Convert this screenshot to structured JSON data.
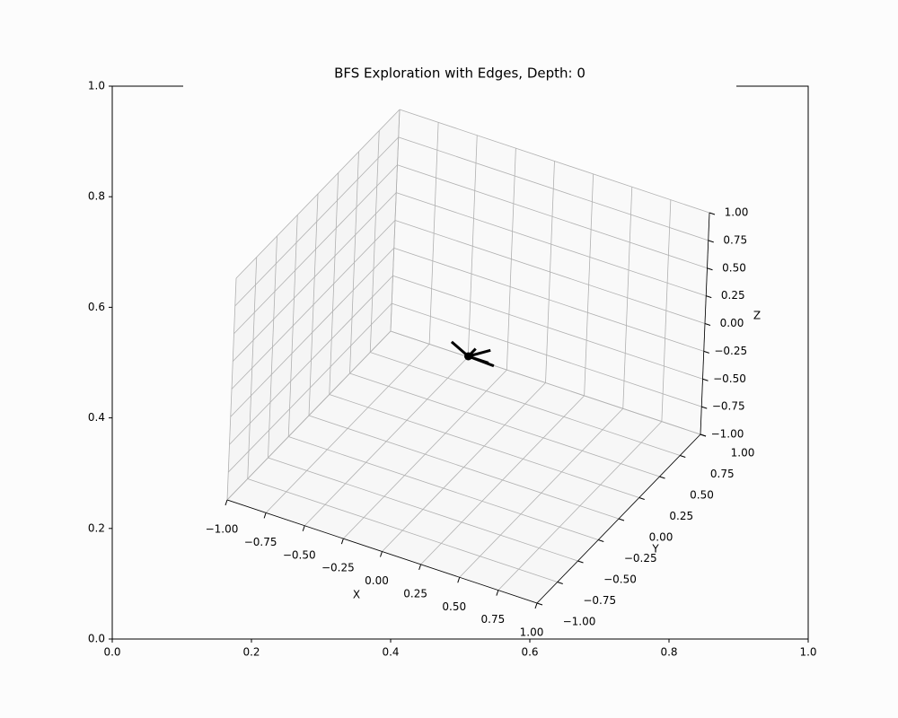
{
  "chart_data": [
    {
      "type": "axes2d",
      "title": "BFS Exploration with Edges, Depth: 0",
      "xlim": [
        0,
        1
      ],
      "ylim": [
        0,
        1
      ],
      "xticks": [
        {
          "value": 0,
          "label": "0.0"
        },
        0.2,
        0.4,
        0.6,
        0.8,
        {
          "value": 1,
          "label": "1.0"
        }
      ],
      "yticks": [
        {
          "value": 0,
          "label": "0.0"
        },
        0.2,
        0.4,
        0.6,
        0.8,
        {
          "value": 1,
          "label": "1.0"
        }
      ]
    },
    {
      "type": "scatter3d",
      "xlabel": "X",
      "ylabel": "Y",
      "zlabel": "Z",
      "xlim": [
        -1,
        1
      ],
      "ylim": [
        -1,
        1
      ],
      "zlim": [
        -1,
        1
      ],
      "xticks": [
        {
          "value": -1,
          "label": "−1.00"
        },
        {
          "value": -0.75,
          "label": "−0.75"
        },
        {
          "value": -0.5,
          "label": "−0.50"
        },
        {
          "value": -0.25,
          "label": "−0.25"
        },
        {
          "value": 0,
          "label": "0.00"
        },
        {
          "value": 0.25,
          "label": "0.25"
        },
        {
          "value": 0.5,
          "label": "0.50"
        },
        {
          "value": 0.75,
          "label": "0.75"
        },
        {
          "value": 1,
          "label": "1.00"
        }
      ],
      "yticks": [
        {
          "value": -1,
          "label": "−1.00"
        },
        {
          "value": -0.75,
          "label": "−0.75"
        },
        {
          "value": -0.5,
          "label": "−0.50"
        },
        {
          "value": -0.25,
          "label": "−0.25"
        },
        {
          "value": 0,
          "label": "0.00"
        },
        {
          "value": 0.25,
          "label": "0.25"
        },
        {
          "value": 0.5,
          "label": "0.50"
        },
        {
          "value": 0.75,
          "label": "0.75"
        },
        {
          "value": 1,
          "label": "1.00"
        }
      ],
      "zticks": [
        {
          "value": -1,
          "label": "−1.00"
        },
        {
          "value": -0.75,
          "label": "−0.75"
        },
        {
          "value": -0.5,
          "label": "−0.50"
        },
        {
          "value": -0.25,
          "label": "−0.25"
        },
        {
          "value": 0,
          "label": "0.00"
        },
        {
          "value": 0.25,
          "label": "0.25"
        },
        {
          "value": 0.5,
          "label": "0.50"
        },
        {
          "value": 0.75,
          "label": "0.75"
        },
        {
          "value": 1,
          "label": "1.00"
        }
      ],
      "grid": true,
      "points": {
        "color": "#000000",
        "x": [
          0
        ],
        "y": [
          0
        ],
        "z": [
          0
        ]
      },
      "edges": {
        "color": "#000000",
        "lines": [
          {
            "x": [
              0,
              -0.15
            ],
            "y": [
              0,
              0.08
            ],
            "z": [
              0,
              0
            ]
          },
          {
            "x": [
              0,
              0.08
            ],
            "y": [
              0,
              0.12
            ],
            "z": [
              0,
              0
            ]
          },
          {
            "x": [
              0,
              0.17
            ],
            "y": [
              0,
              -0.01
            ],
            "z": [
              0,
              0
            ]
          },
          {
            "x": [
              0,
              0.13
            ],
            "y": [
              0,
              0
            ],
            "z": [
              0,
              0
            ]
          },
          {
            "x": [
              0,
              0
            ],
            "y": [
              0,
              0.09
            ],
            "z": [
              0,
              0
            ]
          }
        ]
      }
    }
  ]
}
